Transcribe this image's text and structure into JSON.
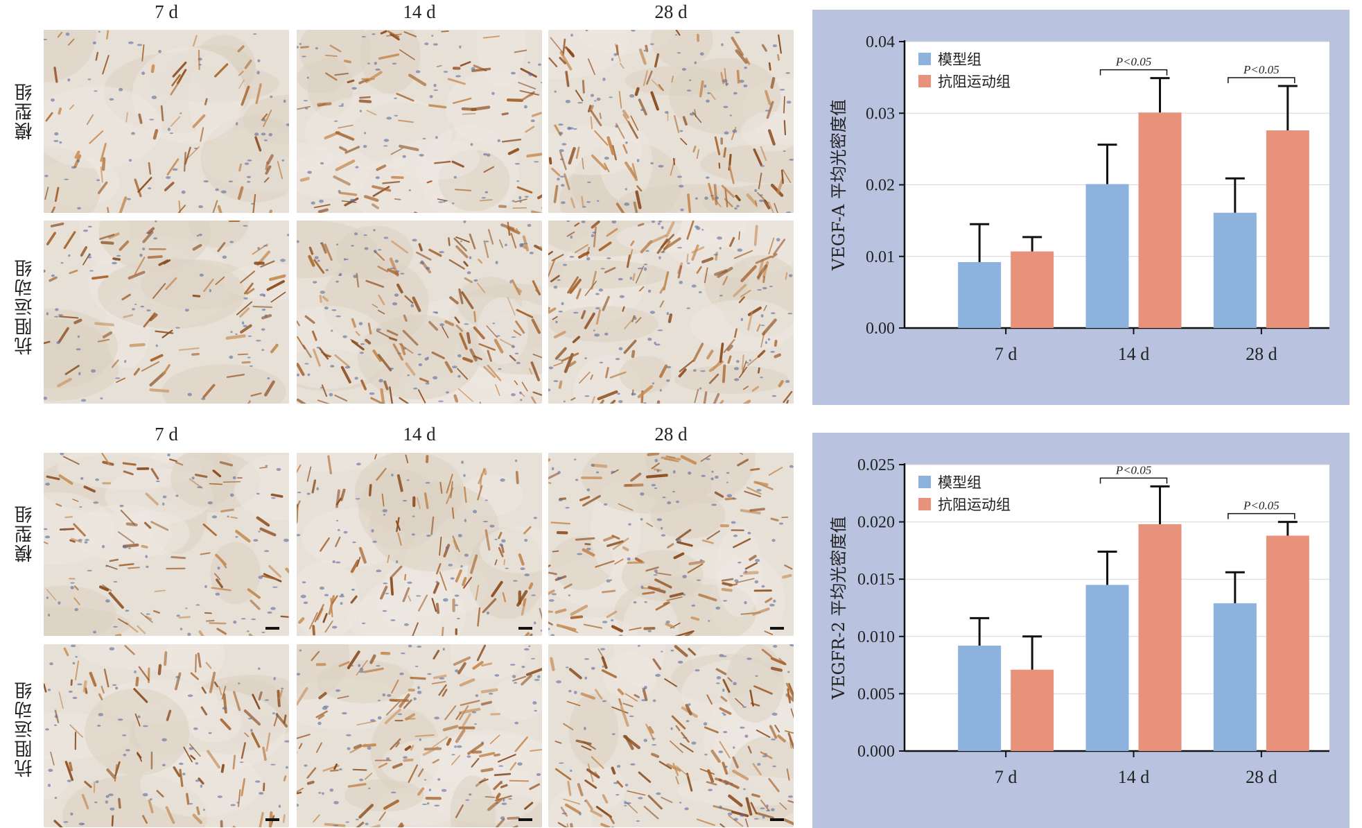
{
  "figure_top": {
    "col_labels": [
      "7 d",
      "14 d",
      "28 d"
    ],
    "row_labels": [
      "模型组",
      "抗阻运动组"
    ]
  },
  "figure_bottom": {
    "col_labels": [
      "7 d",
      "14 d",
      "28 d"
    ],
    "row_labels": [
      "模型组",
      "抗阻运动组"
    ]
  },
  "colors": {
    "model": "#8db2dd",
    "exercise": "#e8927c",
    "panel_bg": "#b9c3e0",
    "tissue_base": "#e6e0d6",
    "stain_brown": "#a7642c",
    "nuclei_blue": "#5a6a9c"
  },
  "chart_data": [
    {
      "type": "bar",
      "ylabel": "VEGF-A 平均光密度值",
      "categories": [
        "7 d",
        "14 d",
        "28 d"
      ],
      "ylim": [
        0,
        0.04
      ],
      "yticks": [
        "0.00",
        "0.01",
        "0.02",
        "0.03",
        "0.04"
      ],
      "legend": "top-left",
      "grid": true,
      "series": [
        {
          "name": "模型组",
          "values": [
            0.0092,
            0.0201,
            0.0161
          ],
          "errors": [
            0.0053,
            0.0055,
            0.0048
          ]
        },
        {
          "name": "抗阻运动组",
          "values": [
            0.0107,
            0.0301,
            0.0276
          ],
          "errors": [
            0.002,
            0.0048,
            0.0062
          ]
        }
      ],
      "annotations": [
        {
          "text": "P<0.05",
          "category": "14 d"
        },
        {
          "text": "P<0.05",
          "category": "28 d"
        }
      ]
    },
    {
      "type": "bar",
      "ylabel": "VEGFR-2 平均光密度值",
      "categories": [
        "7 d",
        "14 d",
        "28 d"
      ],
      "ylim": [
        0,
        0.025
      ],
      "yticks": [
        "0.000",
        "0.005",
        "0.010",
        "0.015",
        "0.020",
        "0.025"
      ],
      "legend": "top-left",
      "grid": true,
      "series": [
        {
          "name": "模型组",
          "values": [
            0.0092,
            0.0145,
            0.0129
          ],
          "errors": [
            0.0024,
            0.0029,
            0.0027
          ]
        },
        {
          "name": "抗阻运动组",
          "values": [
            0.0071,
            0.0198,
            0.0188
          ],
          "errors": [
            0.0029,
            0.0033,
            0.0012
          ]
        }
      ],
      "annotations": [
        {
          "text": "P<0.05",
          "category": "14 d"
        },
        {
          "text": "P<0.05",
          "category": "28 d"
        }
      ]
    }
  ]
}
